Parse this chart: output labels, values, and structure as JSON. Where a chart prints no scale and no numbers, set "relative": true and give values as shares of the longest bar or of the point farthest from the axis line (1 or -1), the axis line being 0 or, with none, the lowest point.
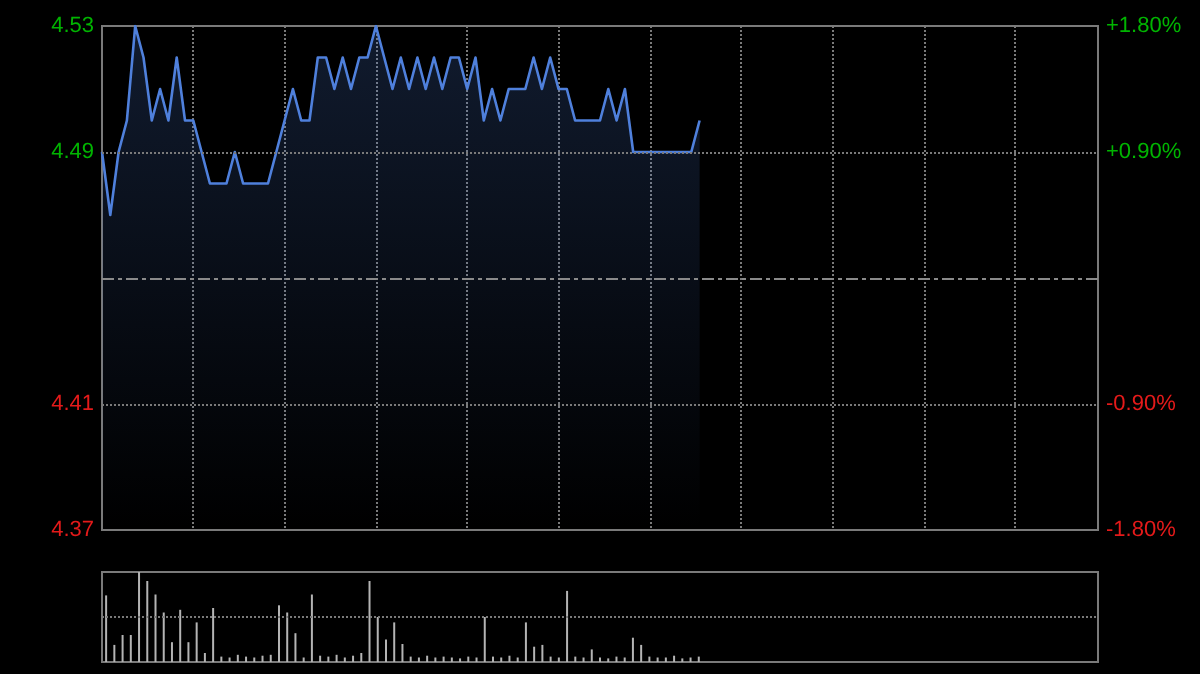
{
  "chart_data": [
    {
      "type": "area",
      "categories": [
        null,
        null,
        null,
        null,
        null,
        null,
        null,
        null,
        null,
        null,
        null,
        null,
        null,
        null,
        null,
        null,
        null,
        null,
        null,
        null,
        null,
        null,
        null,
        null,
        null,
        null,
        null,
        null,
        null,
        null,
        null,
        null,
        null,
        null,
        null,
        null,
        null,
        null,
        null,
        null,
        null,
        null,
        null,
        null,
        null,
        null,
        null,
        null,
        null,
        null,
        null,
        null,
        null,
        null,
        null,
        null,
        null,
        null,
        null,
        null,
        null,
        null,
        null,
        null,
        null,
        null,
        null,
        null,
        null,
        null,
        null,
        null,
        null,
        null,
        null,
        null,
        null,
        null,
        null,
        null,
        null,
        null,
        null,
        null,
        null,
        null,
        null,
        null,
        null,
        null,
        null,
        null,
        null,
        null,
        null,
        null,
        null,
        null,
        null,
        null,
        null,
        null,
        null,
        null,
        null,
        null,
        null,
        null,
        null,
        null,
        null,
        null,
        null,
        null,
        null,
        null,
        null,
        null,
        null,
        null,
        null
      ],
      "series": [
        {
          "color": "#4f80dc",
          "values": [
            4.49,
            4.47,
            4.49,
            4.5,
            4.53,
            4.52,
            4.5,
            4.51,
            4.5,
            4.52,
            4.5,
            4.5,
            4.49,
            4.48,
            4.48,
            4.48,
            4.49,
            4.48,
            4.48,
            4.48,
            4.48,
            4.49,
            4.5,
            4.51,
            4.5,
            4.5,
            4.52,
            4.52,
            4.51,
            4.52,
            4.51,
            4.52,
            4.52,
            4.53,
            4.52,
            4.51,
            4.52,
            4.51,
            4.52,
            4.51,
            4.52,
            4.51,
            4.52,
            4.52,
            4.51,
            4.52,
            4.5,
            4.51,
            4.5,
            4.51,
            4.51,
            4.51,
            4.52,
            4.51,
            4.52,
            4.51,
            4.51,
            4.5,
            4.5,
            4.5,
            4.5,
            4.51,
            4.5,
            4.51,
            4.49,
            4.49,
            4.49,
            4.49,
            4.49,
            4.49,
            4.49,
            4.49,
            4.5,
            null,
            null,
            null,
            null,
            null,
            null,
            null,
            null,
            null,
            null,
            null,
            null,
            null,
            null,
            null,
            null,
            null,
            null,
            null,
            null,
            null,
            null,
            null,
            null,
            null,
            null,
            null,
            null,
            null,
            null,
            null,
            null,
            null,
            null,
            null,
            null,
            null,
            null,
            null,
            null,
            null,
            null,
            null,
            null,
            null,
            null,
            null,
            null
          ]
        }
      ],
      "ylim": [
        4.37,
        4.53
      ],
      "yticks": [
        4.37,
        4.41,
        4.49,
        4.53
      ],
      "y2lim": [
        -1.8,
        1.8
      ],
      "y2ticks": [
        {
          "value": -1.8,
          "label": "-1.80%"
        },
        {
          "value": -0.9,
          "label": "-0.90%"
        },
        {
          "value": 0.9,
          "label": "+0.90%"
        },
        {
          "value": 1.8,
          "label": "+1.80%"
        }
      ],
      "ref_lines": [
        {
          "axis": "y",
          "value": 4.45,
          "color": "#8a8a8a",
          "line_style": "dashed"
        }
      ],
      "grid": true,
      "tick_labels": "y",
      "line_style": "solid"
    },
    {
      "type": "bar",
      "relative": true,
      "categories": [
        null,
        null,
        null,
        null,
        null,
        null,
        null,
        null,
        null,
        null,
        null,
        null,
        null,
        null,
        null,
        null,
        null,
        null,
        null,
        null,
        null,
        null,
        null,
        null,
        null,
        null,
        null,
        null,
        null,
        null,
        null,
        null,
        null,
        null,
        null,
        null,
        null,
        null,
        null,
        null,
        null,
        null,
        null,
        null,
        null,
        null,
        null,
        null,
        null,
        null,
        null,
        null,
        null,
        null,
        null,
        null,
        null,
        null,
        null,
        null,
        null,
        null,
        null,
        null,
        null,
        null,
        null,
        null,
        null,
        null,
        null,
        null,
        null,
        null,
        null,
        null,
        null,
        null,
        null,
        null,
        null,
        null,
        null,
        null,
        null,
        null,
        null,
        null,
        null,
        null,
        null,
        null,
        null,
        null,
        null,
        null,
        null,
        null,
        null,
        null,
        null,
        null,
        null,
        null,
        null,
        null,
        null,
        null,
        null,
        null,
        null,
        null,
        null,
        null,
        null,
        null,
        null,
        null,
        null,
        null,
        null
      ],
      "series": [
        {
          "color": "#b4b4b4",
          "values": [
            0.74,
            0.19,
            0.3,
            0.3,
            1.0,
            0.9,
            0.75,
            0.55,
            0.22,
            0.58,
            0.22,
            0.44,
            0.1,
            0.6,
            0.06,
            0.05,
            0.08,
            0.06,
            0.05,
            0.07,
            0.08,
            0.63,
            0.55,
            0.32,
            0.05,
            0.75,
            0.07,
            0.06,
            0.08,
            0.05,
            0.07,
            0.1,
            0.9,
            0.5,
            0.25,
            0.44,
            0.2,
            0.06,
            0.05,
            0.07,
            0.05,
            0.06,
            0.05,
            0.04,
            0.06,
            0.05,
            0.5,
            0.06,
            0.05,
            0.07,
            0.05,
            0.44,
            0.17,
            0.19,
            0.06,
            0.05,
            0.79,
            0.06,
            0.05,
            0.14,
            0.05,
            0.04,
            0.06,
            0.05,
            0.27,
            0.19,
            0.06,
            0.05,
            0.05,
            0.07,
            0.04,
            0.05,
            0.06,
            null,
            null,
            null,
            null,
            null,
            null,
            null,
            null,
            null,
            null,
            null,
            null,
            null,
            null,
            null,
            null,
            null,
            null,
            null,
            null,
            null,
            null,
            null,
            null,
            null,
            null,
            null,
            null,
            null,
            null,
            null,
            null,
            null,
            null,
            null,
            null,
            null,
            null,
            null,
            null,
            null,
            null,
            null,
            null,
            null,
            null,
            null,
            null
          ]
        }
      ],
      "ref_lines": [
        {
          "axis": "y",
          "value": 0.5,
          "color": "#7a7a7a",
          "line_style": "dotted"
        }
      ],
      "tick_labels": false
    }
  ]
}
